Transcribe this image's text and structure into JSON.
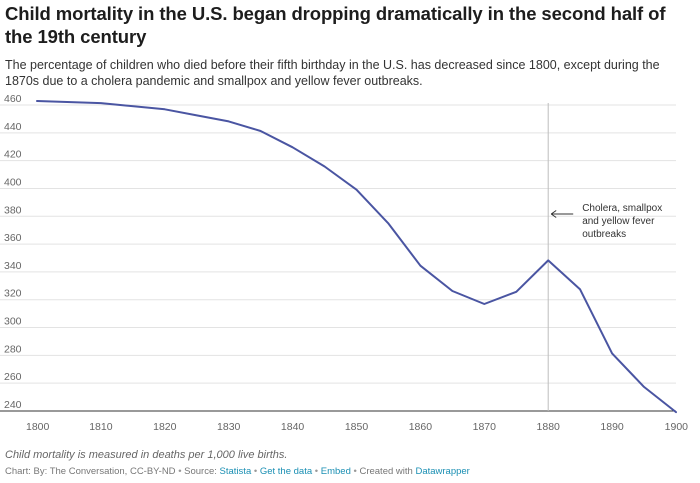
{
  "title": "Child mortality in the U.S. began dropping dramatically in the second half of the 19th century",
  "subtitle": "The percentage of children who died before their fifth birthday in the U.S. has decreased since 1800, except during the 1870s due to a cholera pandemic and smallpox and yellow fever outbreaks.",
  "note": "Child mortality is measured in deaths per 1,000 live births.",
  "credits": {
    "chart_by": "Chart: By: The Conversation, CC-BY-ND",
    "source_prefix": "Source:",
    "source_name": "Statista",
    "get_data": "Get the data",
    "embed": "Embed",
    "created_with": "Created with",
    "tool": "Datawrapper",
    "separator": "•"
  },
  "colors": {
    "line": "#4a55a2",
    "grid": "#e3e3e3",
    "annotation_rule": "#bdbdbd"
  },
  "chart_data": {
    "type": "line",
    "title": "Child mortality in the U.S. began dropping dramatically in the second half of the 19th century",
    "xlabel": "",
    "ylabel": "",
    "xlim": [
      1800,
      1900
    ],
    "ylim": [
      240,
      460
    ],
    "x_ticks": [
      1800,
      1810,
      1820,
      1830,
      1840,
      1850,
      1860,
      1870,
      1880,
      1890,
      1900
    ],
    "y_ticks": [
      240,
      260,
      280,
      300,
      320,
      340,
      360,
      380,
      400,
      420,
      440,
      460
    ],
    "grid": true,
    "legend": "none",
    "series": [
      {
        "x": [
          1800,
          1810,
          1820,
          1825,
          1830,
          1835,
          1840,
          1845,
          1850,
          1855,
          1860,
          1865,
          1870,
          1875,
          1880,
          1885,
          1890,
          1895,
          1900
        ],
        "values": [
          462.9,
          461.4,
          456.9,
          452.5,
          448.2,
          441.3,
          429.6,
          415.8,
          399.1,
          374.7,
          344.5,
          326.3,
          316.9,
          325.7,
          348.3,
          327.4,
          281.4,
          257.3,
          239.2
        ]
      }
    ],
    "annotations": [
      {
        "x": 1880,
        "text": [
          "Cholera, smallpox",
          "and yellow fever",
          "outbreaks"
        ]
      }
    ]
  }
}
